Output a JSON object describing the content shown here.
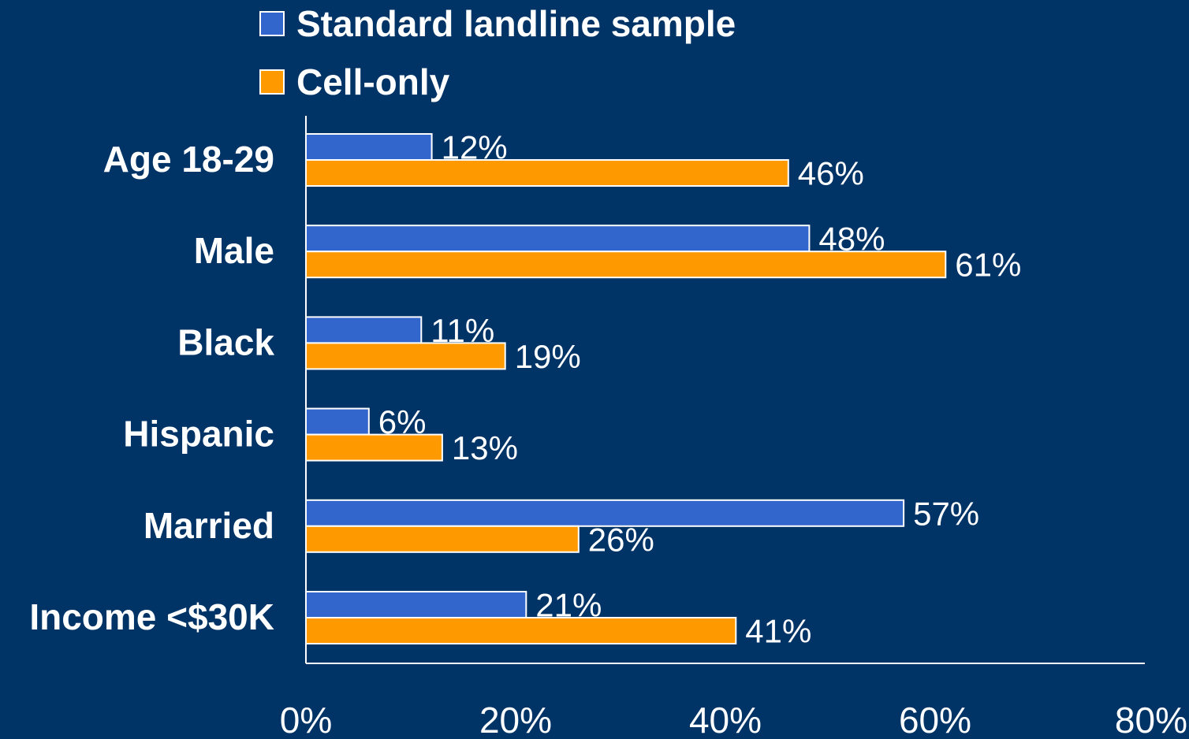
{
  "chart_data": {
    "type": "bar",
    "orientation": "horizontal",
    "categories": [
      "Age 18-29",
      "Male",
      "Black",
      "Hispanic",
      "Married",
      "Income <$30K"
    ],
    "series": [
      {
        "name": "Standard landline sample",
        "color": "#3366cc",
        "values": [
          12,
          48,
          11,
          6,
          57,
          21
        ],
        "labels": [
          "12%",
          "48%",
          "11%",
          "6%",
          "57%",
          "21%"
        ]
      },
      {
        "name": "Cell-only",
        "color": "#ff9900",
        "values": [
          46,
          61,
          19,
          13,
          26,
          41
        ],
        "labels": [
          "46%",
          "61%",
          "19%",
          "13%",
          "26%",
          "41%"
        ]
      }
    ],
    "xlim": [
      0,
      80
    ],
    "xticks": [
      "0%",
      "20%",
      "40%",
      "60%",
      "80%"
    ],
    "title": "",
    "xlabel": "",
    "ylabel": "",
    "grid": false,
    "legend_position": "top-left",
    "background_color": "#003366",
    "axis_color": "#ffffff",
    "text_color": "#ffffff"
  }
}
